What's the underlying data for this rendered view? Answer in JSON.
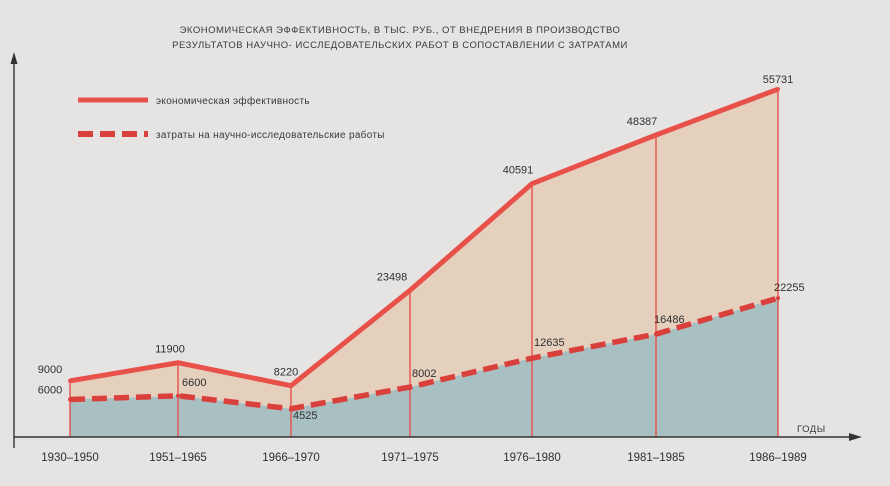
{
  "chart_data": {
    "type": "area",
    "title_lines": [
      "ЭКОНОМИЧЕСКАЯ ЭФФЕКТИВНОСТЬ, В ТЫС. РУБ., ОТ ВНЕДРЕНИЯ В ПРОИЗВОДСТВО",
      "РЕЗУЛЬТАТОВ НАУЧНО- ИССЛЕДОВАТЕЛЬСКИХ РАБОТ В СОПОСТАВЛЕНИИ С ЗАТРАТАМИ"
    ],
    "xlabel": "ГОДЫ",
    "categories": [
      "1930–1950",
      "1951–1965",
      "1966–1970",
      "1971–1975",
      "1976–1980",
      "1981–1985",
      "1986–1989"
    ],
    "series": [
      {
        "name": "экономическая эффективность",
        "values": [
          9000,
          11900,
          8220,
          23498,
          40591,
          48387,
          55731
        ],
        "color": "#e8504a",
        "fill": "#e5cfbd",
        "style": "solid"
      },
      {
        "name": "затраты на научно-исследовательские работы",
        "values": [
          6000,
          6600,
          4525,
          8002,
          12635,
          16486,
          22255
        ],
        "color": "#d9403c",
        "fill": "#a9c0c3",
        "style": "dashed"
      }
    ],
    "ylim": [
      0,
      58000
    ],
    "grid": false,
    "legend": "top-left",
    "colors": {
      "background": "#e6e4e3",
      "axis": "#333333",
      "grid_lines": "#e8504a"
    }
  }
}
